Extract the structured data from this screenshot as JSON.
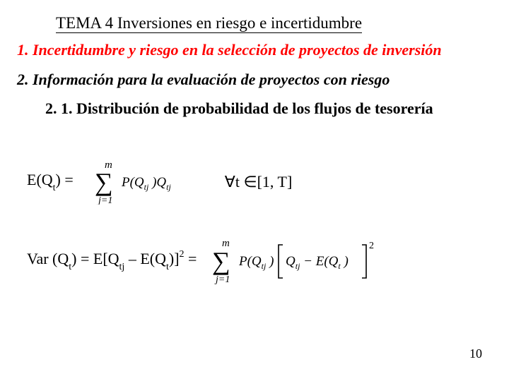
{
  "title": "TEMA 4 Inversiones en riesgo e incertidumbre",
  "heading1": "1. Incertidumbre y riesgo en la selección de proyectos de inversión",
  "heading2": "2. Información para la evaluación de proyectos con riesgo",
  "subheading": "2. 1. Distribución de probabilidad de los flujos de tesorería",
  "formula1": {
    "lhs_html": "E(Q<span class='sub'>t</span>) =",
    "sum_upper": "m",
    "sum_lower": "j=1",
    "sum_body": "P(Q<tspan dy='4' font-size='12'>tj</tspan><tspan dy='-4'> </tspan>)Q<tspan dy='4' font-size='12'>tj</tspan>",
    "forall_html": "∀t ∈[1, T]"
  },
  "formula2": {
    "lhs_html": "Var (Q<span class='sub'>t</span>) = E[Q<span class='sub'>tj</span> – E(Q<span class='sub'>t</span>)]<span class='sup'>2</span> =",
    "sum_upper": "m",
    "sum_lower": "j=1",
    "term1": "P(Q<tspan dy='4' font-size='12'>tj</tspan><tspan dy='-4'> </tspan>)",
    "term2": "Q<tspan dy='4' font-size='12'>tj</tspan><tspan dy='-4'> </tspan> − E(Q<tspan dy='4' font-size='12'>t</tspan><tspan dy='-4'> </tspan>)",
    "exp": "2"
  },
  "page_number": "10",
  "colors": {
    "red": "#ff0000",
    "black": "#000000",
    "bg": "#ffffff"
  },
  "fonts": {
    "family": "Times New Roman",
    "title_size": 23,
    "heading_size": 22,
    "formula_size": 22
  }
}
